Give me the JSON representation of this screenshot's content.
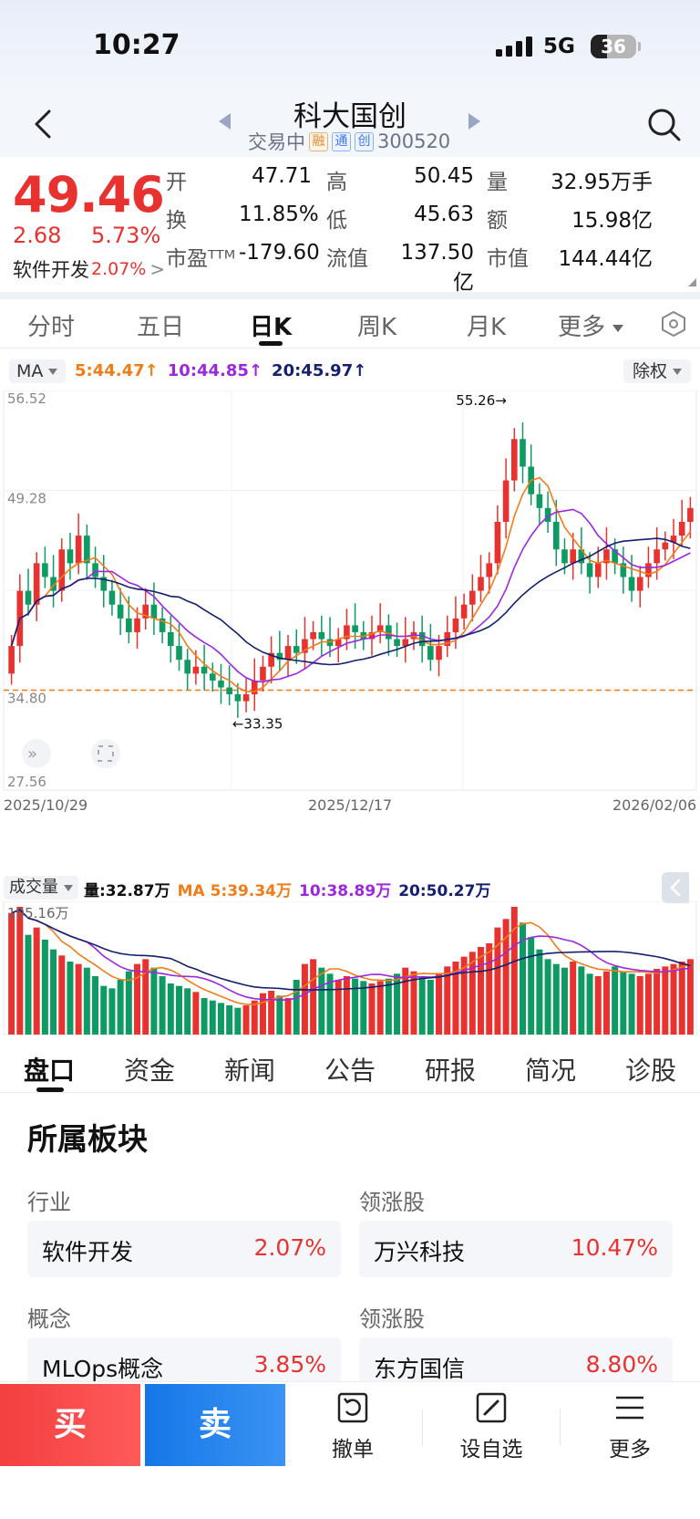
{
  "status_bar": {
    "time": "10:27",
    "network": "5G",
    "battery": "36"
  },
  "header": {
    "title": "科大国创",
    "status": "交易中",
    "tags": [
      "融",
      "通",
      "创"
    ],
    "code": "300520"
  },
  "quote": {
    "price": "49.46",
    "change": "2.68",
    "change_pct": "5.73%",
    "sector_name": "软件开发",
    "sector_pct": "2.07%",
    "fields": [
      {
        "label": "开",
        "value": "47.71",
        "tone": "red"
      },
      {
        "label": "高",
        "value": "50.45",
        "tone": "red"
      },
      {
        "label": "量",
        "value": "32.95万手",
        "tone": "plain"
      },
      {
        "label": "换",
        "value": "11.85%",
        "tone": "plain"
      },
      {
        "label": "低",
        "value": "45.63",
        "tone": "green"
      },
      {
        "label": "额",
        "value": "15.98亿",
        "tone": "plain"
      },
      {
        "label": "市盈ᵀᵀᴹ",
        "value": "-179.60",
        "tone": "plain"
      },
      {
        "label": "流值",
        "value": "137.50亿",
        "tone": "plain"
      },
      {
        "label": "市值",
        "value": "144.44亿",
        "tone": "plain"
      }
    ]
  },
  "period_tabs": [
    "分时",
    "五日",
    "日K",
    "周K",
    "月K",
    "更多"
  ],
  "active_period": "日K",
  "ma_row": {
    "selector": "MA",
    "ma5": "5:44.47",
    "ma10": "10:44.85",
    "ma20": "20:45.97",
    "adjust": "除权"
  },
  "chart_data": {
    "type": "candlestick",
    "ylim": [
      27.56,
      56.52
    ],
    "y_ticks": [
      "56.52",
      "49.28",
      "34.80",
      "27.56"
    ],
    "x_labels": [
      "2025/10/29",
      "2025/12/17",
      "2026/02/06"
    ],
    "high_marker": "55.26",
    "low_marker": "33.35",
    "ref_line": 34.8,
    "colors": {
      "up": "#e8322f",
      "down": "#0e9a63",
      "ma5": "#f07c1a",
      "ma10": "#9b28e0",
      "ma20": "#15206e"
    },
    "closes": [
      38,
      42,
      41,
      44,
      43,
      42,
      45,
      44,
      46,
      44,
      43,
      42,
      41,
      40,
      39,
      40,
      41,
      40,
      39,
      38,
      37,
      36,
      36.5,
      36,
      35.5,
      35,
      34.5,
      34,
      34.5,
      35.5,
      36.5,
      37.5,
      37,
      38,
      37.5,
      38.5,
      39,
      38.5,
      38,
      38.5,
      39.5,
      39,
      38.5,
      39,
      39.5,
      38.5,
      38,
      38.5,
      39,
      38,
      37,
      38,
      39,
      40,
      41,
      42,
      43,
      44,
      47,
      50,
      53,
      51,
      49,
      48,
      47,
      45,
      44,
      45,
      44,
      43,
      44,
      45,
      44,
      43,
      42,
      43,
      44,
      45,
      45.5,
      46,
      47,
      48
    ],
    "volume": {
      "max_label": "105.16万",
      "values": [
        100,
        105,
        82,
        88,
        78,
        70,
        65,
        60,
        58,
        55,
        48,
        40,
        38,
        45,
        52,
        58,
        62,
        55,
        48,
        42,
        40,
        38,
        35,
        30,
        28,
        26,
        24,
        22,
        24,
        28,
        34,
        36,
        32,
        30,
        45,
        58,
        62,
        55,
        50,
        45,
        48,
        46,
        44,
        42,
        44,
        46,
        50,
        55,
        52,
        48,
        45,
        50,
        56,
        60,
        64,
        68,
        72,
        75,
        88,
        95,
        105,
        92,
        80,
        70,
        62,
        58,
        55,
        60,
        56,
        50,
        48,
        52,
        56,
        52,
        50,
        48,
        50,
        54,
        56,
        58,
        60,
        62
      ]
    }
  },
  "vol_header": {
    "selector": "成交量",
    "vol": "量:32.87万",
    "ma5": "MA 5:39.34万",
    "ma10": "10:38.89万",
    "ma20": "20:50.27万"
  },
  "content_tabs": [
    "盘口",
    "资金",
    "新闻",
    "公告",
    "研报",
    "简况",
    "诊股"
  ],
  "active_content": "盘口",
  "sector_section": {
    "title": "所属板块",
    "rows": [
      {
        "left_label": "行业",
        "left_name": "软件开发",
        "left_pct": "2.07%",
        "right_label": "领涨股",
        "right_name": "万兴科技",
        "right_pct": "10.47%"
      },
      {
        "left_label": "概念",
        "left_name": "MLOps概念",
        "left_pct": "3.85%",
        "right_label": "领涨股",
        "right_name": "东方国信",
        "right_pct": "8.80%"
      }
    ]
  },
  "bottom_bar": {
    "buy": "买",
    "sell": "卖",
    "cancel": "撤单",
    "watchlist": "设自选",
    "more": "更多"
  }
}
